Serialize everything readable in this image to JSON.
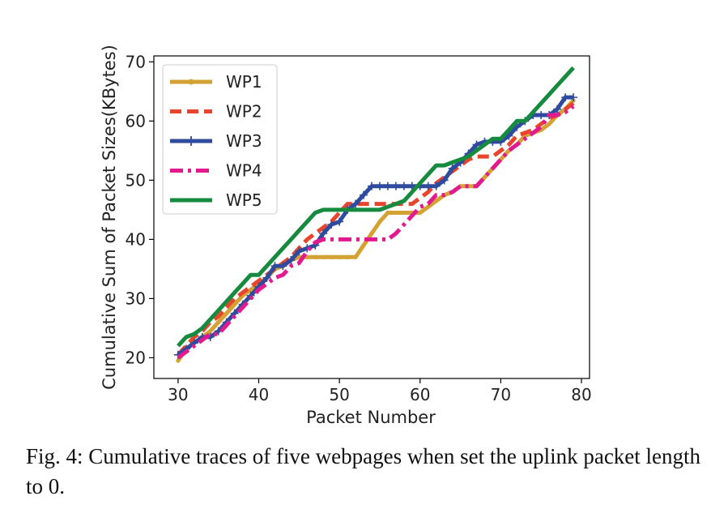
{
  "chart_data": {
    "type": "line",
    "title": "",
    "xlabel": "Packet Number",
    "ylabel": "Cumulative Sum of Packet Sizes(KBytes)",
    "xlim": [
      27,
      81
    ],
    "ylim": [
      16.5,
      71
    ],
    "xticks": [
      30,
      40,
      50,
      60,
      70,
      80
    ],
    "yticks": [
      20,
      30,
      40,
      50,
      60,
      70
    ],
    "grid": false,
    "legend": "top-left",
    "series": [
      {
        "name": "WP1",
        "color": "#d4a233",
        "style": "solid",
        "marker": "dot",
        "x": [
          30,
          31,
          32,
          33,
          34,
          35,
          36,
          37,
          38,
          39,
          40,
          41,
          42,
          43,
          44,
          45,
          46,
          47,
          48,
          49,
          50,
          51,
          52,
          53,
          54,
          55,
          56,
          57,
          58,
          59,
          60,
          61,
          62,
          63,
          64,
          65,
          66,
          67,
          68,
          69,
          70,
          71,
          72,
          73,
          74,
          75,
          76,
          77,
          78,
          79
        ],
        "y": [
          19.5,
          21.5,
          22.5,
          23.5,
          24.5,
          26.0,
          27.5,
          29.0,
          30.5,
          31.5,
          32.5,
          33.5,
          35.0,
          35.5,
          36.5,
          37.0,
          37.0,
          37.0,
          37.0,
          37.0,
          37.0,
          37.0,
          37.0,
          39.0,
          41.0,
          43.0,
          44.5,
          44.5,
          44.5,
          44.5,
          44.5,
          45.5,
          46.5,
          47.5,
          48.0,
          49.0,
          49.0,
          49.0,
          50.5,
          52.0,
          53.5,
          55.0,
          56.0,
          57.5,
          58.0,
          58.5,
          59.5,
          61.0,
          62.0,
          63.5
        ]
      },
      {
        "name": "WP2",
        "color": "#e8452c",
        "style": "dashed",
        "marker": "none",
        "x": [
          30,
          31,
          32,
          33,
          34,
          35,
          36,
          37,
          38,
          39,
          40,
          41,
          42,
          43,
          44,
          45,
          46,
          47,
          48,
          49,
          50,
          51,
          52,
          53,
          54,
          55,
          56,
          57,
          58,
          59,
          60,
          61,
          62,
          63,
          64,
          65,
          66,
          67,
          68,
          69,
          70,
          71,
          72,
          73,
          74,
          75,
          76,
          77,
          78,
          79
        ],
        "y": [
          20.5,
          22.0,
          23.5,
          24.5,
          26.0,
          27.0,
          28.5,
          30.0,
          31.0,
          32.0,
          33.0,
          34.0,
          35.0,
          36.0,
          37.0,
          38.5,
          40.0,
          41.0,
          42.0,
          43.0,
          44.5,
          46.0,
          46.0,
          46.0,
          46.0,
          46.0,
          46.0,
          46.0,
          46.0,
          46.0,
          47.0,
          48.0,
          49.5,
          50.5,
          51.5,
          52.5,
          53.5,
          54.0,
          54.0,
          54.0,
          55.0,
          56.0,
          57.5,
          58.0,
          58.5,
          59.5,
          60.5,
          61.0,
          62.0,
          63.0
        ]
      },
      {
        "name": "WP3",
        "color": "#2f4b9e",
        "style": "solid",
        "marker": "plus",
        "x": [
          30,
          31,
          32,
          33,
          34,
          35,
          36,
          37,
          38,
          39,
          40,
          41,
          42,
          43,
          44,
          45,
          46,
          47,
          48,
          49,
          50,
          51,
          52,
          53,
          54,
          55,
          56,
          57,
          58,
          59,
          60,
          61,
          62,
          63,
          64,
          65,
          66,
          67,
          68,
          69,
          70,
          71,
          72,
          73,
          74,
          75,
          76,
          77,
          78,
          79
        ],
        "y": [
          20.5,
          21.5,
          22.5,
          23.5,
          23.5,
          24.5,
          26.0,
          27.5,
          29.0,
          30.5,
          32.0,
          33.5,
          35.5,
          35.5,
          36.5,
          38.0,
          38.5,
          39.0,
          41.0,
          42.5,
          43.0,
          45.0,
          46.0,
          47.5,
          49.0,
          49.0,
          49.0,
          49.0,
          49.0,
          49.0,
          49.0,
          49.0,
          49.0,
          50.0,
          52.0,
          53.0,
          54.5,
          56.0,
          56.5,
          56.5,
          56.5,
          57.5,
          59.0,
          60.0,
          61.0,
          61.0,
          61.0,
          62.0,
          64.0,
          64.0
        ]
      },
      {
        "name": "WP4",
        "color": "#e3198f",
        "style": "dashdot",
        "marker": "none",
        "x": [
          30,
          31,
          32,
          33,
          34,
          35,
          36,
          37,
          38,
          39,
          40,
          41,
          42,
          43,
          44,
          45,
          46,
          47,
          48,
          49,
          50,
          51,
          52,
          53,
          54,
          55,
          56,
          57,
          58,
          59,
          60,
          61,
          62,
          63,
          64,
          65,
          66,
          67,
          68,
          69,
          70,
          71,
          72,
          73,
          74,
          75,
          76,
          77,
          78,
          79
        ],
        "y": [
          20.0,
          21.0,
          22.0,
          23.0,
          24.0,
          24.0,
          25.5,
          27.0,
          28.5,
          30.0,
          31.5,
          32.5,
          33.5,
          34.0,
          35.5,
          36.0,
          38.0,
          39.5,
          40.0,
          40.0,
          40.0,
          40.0,
          40.0,
          40.0,
          40.0,
          40.0,
          40.0,
          41.0,
          42.5,
          44.0,
          45.5,
          46.0,
          47.5,
          47.5,
          48.0,
          49.0,
          49.0,
          49.0,
          50.5,
          52.0,
          53.5,
          55.0,
          56.0,
          57.0,
          58.0,
          59.0,
          61.0,
          61.0,
          61.5,
          62.5
        ]
      },
      {
        "name": "WP5",
        "color": "#168a3e",
        "style": "solid",
        "marker": "none",
        "x": [
          30,
          31,
          32,
          33,
          34,
          35,
          36,
          37,
          38,
          39,
          40,
          41,
          42,
          43,
          44,
          45,
          46,
          47,
          48,
          49,
          50,
          51,
          52,
          53,
          54,
          55,
          56,
          57,
          58,
          59,
          60,
          61,
          62,
          63,
          64,
          65,
          66,
          67,
          68,
          69,
          70,
          71,
          72,
          73,
          74,
          75,
          76,
          77,
          78,
          79
        ],
        "y": [
          22.0,
          23.5,
          24.0,
          25.0,
          26.5,
          28.0,
          29.5,
          31.0,
          32.5,
          34.0,
          34.0,
          35.5,
          37.0,
          38.5,
          40.0,
          41.5,
          43.0,
          44.5,
          45.0,
          45.0,
          45.0,
          45.0,
          45.0,
          45.0,
          45.0,
          45.0,
          45.5,
          46.0,
          46.5,
          48.0,
          49.5,
          51.0,
          52.5,
          52.5,
          53.0,
          53.5,
          54.0,
          55.0,
          56.0,
          57.0,
          57.0,
          58.5,
          60.0,
          60.0,
          61.5,
          63.0,
          64.5,
          66.0,
          67.5,
          69.0
        ]
      }
    ]
  },
  "caption": "Fig. 4: Cumulative traces of five webpages when set the uplink packet length to 0."
}
